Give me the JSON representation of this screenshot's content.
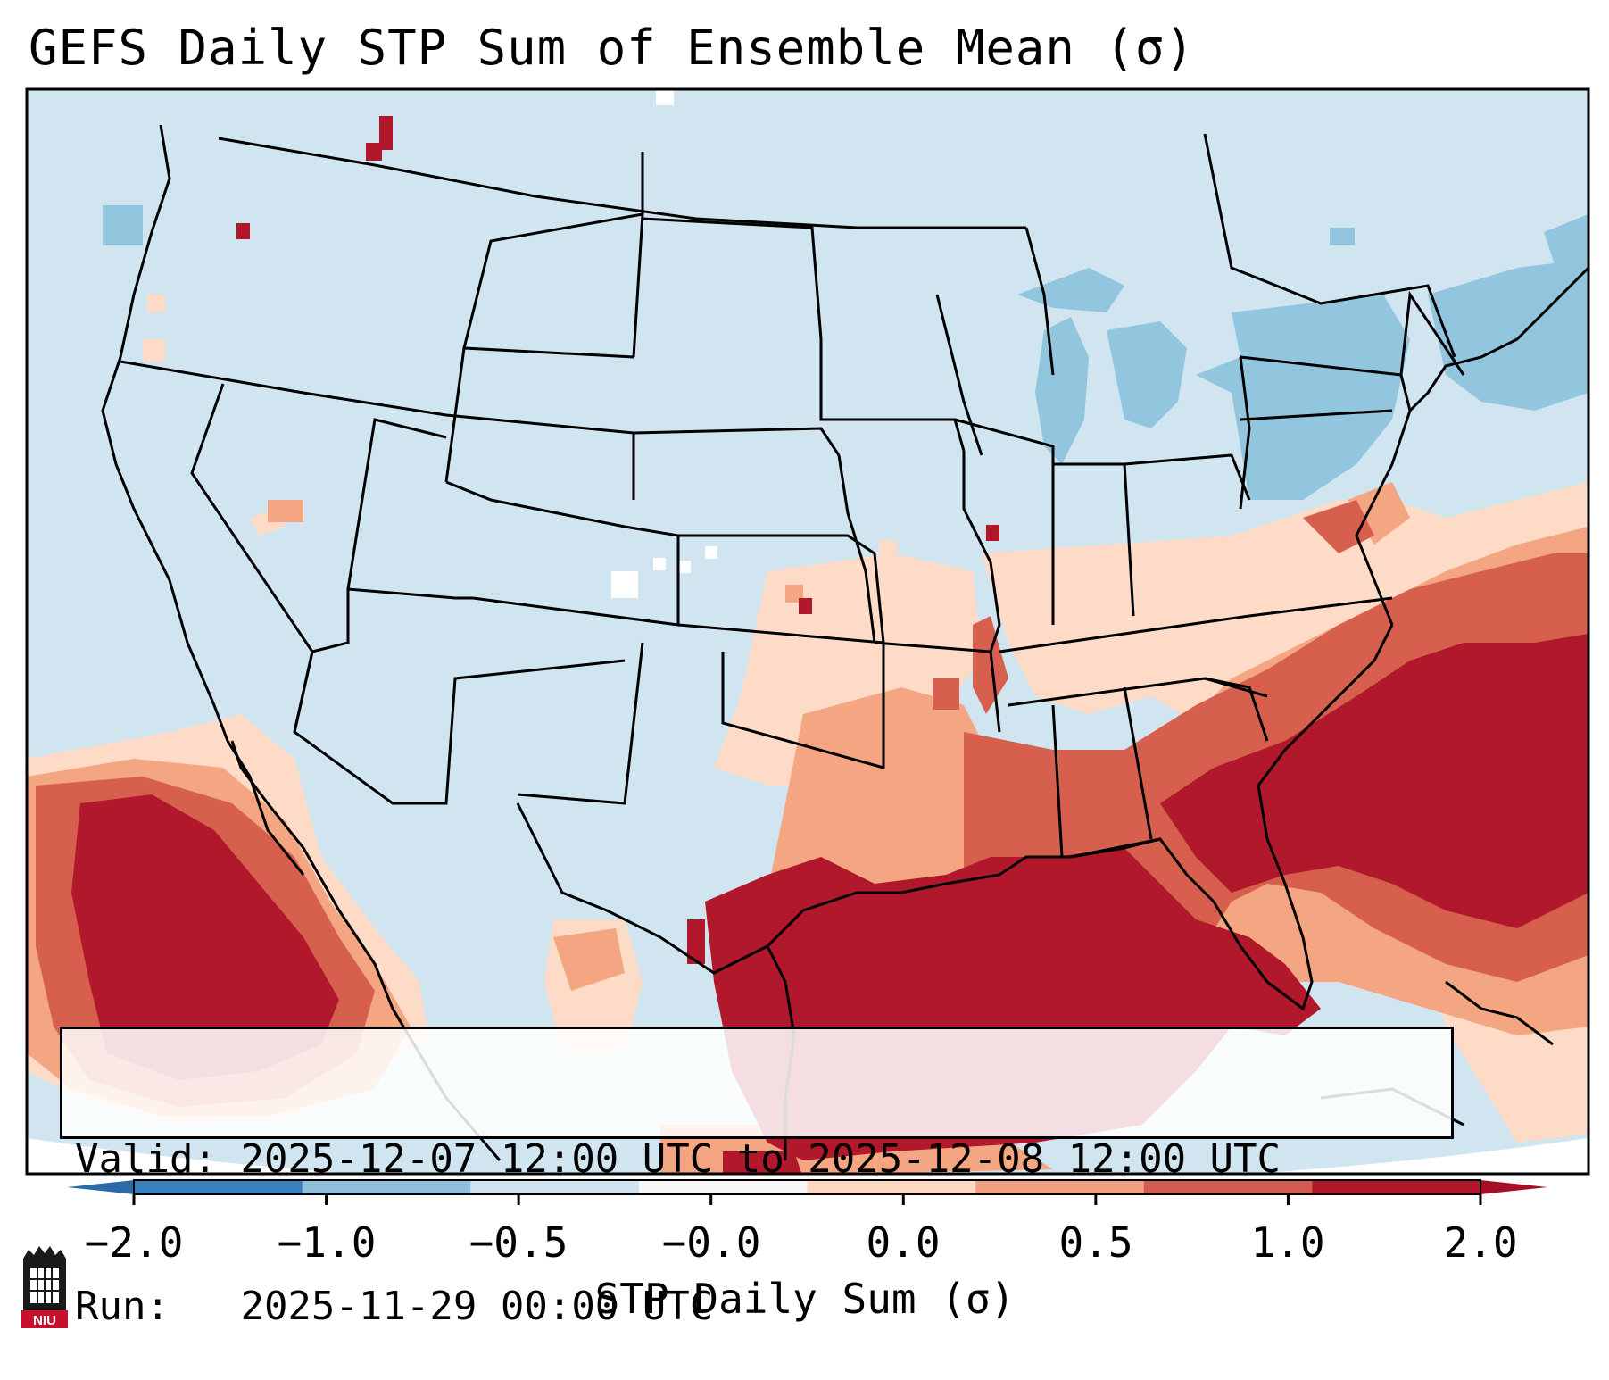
{
  "title": "GEFS Daily STP Sum of Ensemble Mean (σ)",
  "info": {
    "valid_prefix": "Valid:",
    "valid_range": "2025-12-07 12:00 UTC to 2025-12-08 12:00 UTC",
    "run_prefix": "Run:",
    "run_time": "2025-11-29 00:00 UTC"
  },
  "colorbar": {
    "label": "STP Daily Sum (σ)",
    "tick_labels": [
      "−2.0",
      "−1.0",
      "−0.5",
      "−0.0",
      "0.0",
      "0.5",
      "1.0",
      "2.0"
    ],
    "bin_colors": [
      "#3a7fbd",
      "#8fbfdd",
      "#cfe3f0",
      "#f7f7f7",
      "#fdd8c4",
      "#f1a181",
      "#d25b52",
      "#b2182b"
    ],
    "extend_low_color": "#2c6aa7",
    "extend_high_color": "#a50f26"
  },
  "map_colors": {
    "background": "#d1e5f0",
    "ocean_red": "#b2182b",
    "mid_red": "#d6604d",
    "light_red": "#f4a582",
    "pale_red": "#fddbc7",
    "lake_blue": "#92c5de",
    "border": "#000000"
  },
  "logo": {
    "text": "NIU",
    "bg_color": "#c8102e"
  }
}
